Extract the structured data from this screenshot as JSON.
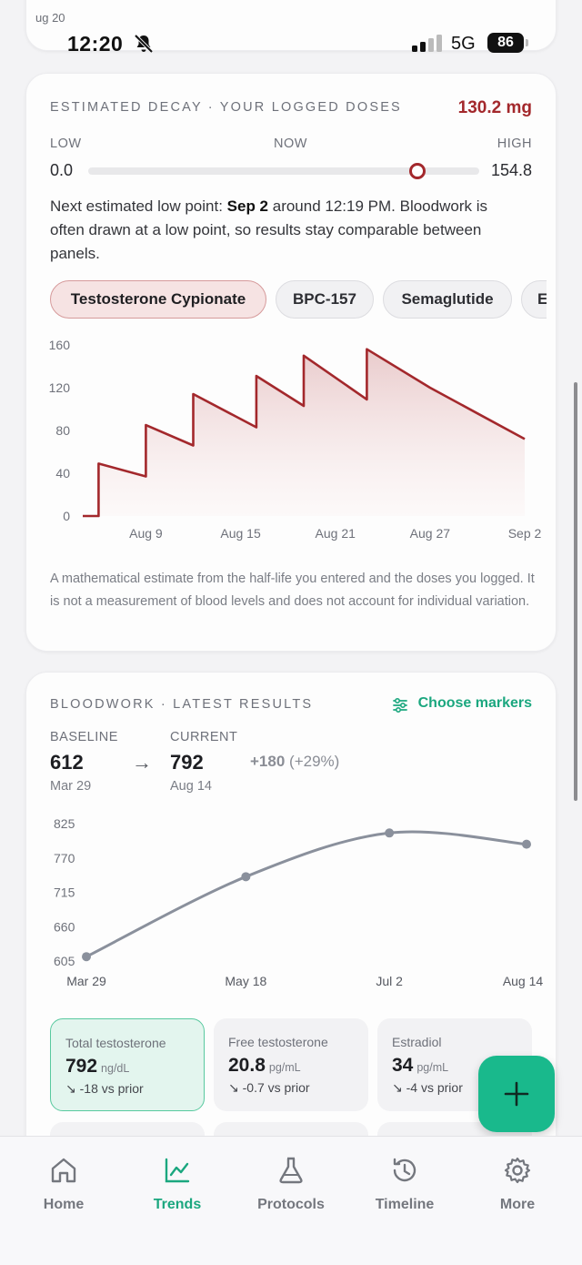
{
  "status_bar": {
    "card_label": "ug 20",
    "time": "12:20",
    "network": "5G",
    "battery": "86"
  },
  "decay": {
    "title": "ESTIMATED DECAY · YOUR LOGGED DOSES",
    "current_value": "130.2 mg",
    "low_label": "LOW",
    "now_label": "NOW",
    "high_label": "HIGH",
    "low_value": "0.0",
    "high_value": "154.8",
    "slider_fraction": 0.841,
    "note_prefix": "Next estimated low point: ",
    "note_date": "Sep 2",
    "note_suffix": " around 12:19 PM. Bloodwork is often drawn at a low point, so results stay comparable between panels.",
    "chips": [
      "Testosterone Cypionate",
      "BPC-157",
      "Semaglutide",
      "E"
    ],
    "disclaimer": "A mathematical estimate from the half-life you entered and the doses you logged. It is not a measurement of blood levels and does not account for individual variation."
  },
  "chart_data": [
    {
      "type": "area",
      "title": "",
      "xlabel": "",
      "ylabel": "",
      "x_ticks": [
        "Aug 9",
        "Aug 15",
        "Aug 21",
        "Aug 27",
        "Sep 2"
      ],
      "y_ticks": [
        0,
        40,
        80,
        120,
        160
      ],
      "ylim": [
        0,
        160
      ],
      "color": "#a3282c",
      "points": [
        [
          "Aug 5",
          0
        ],
        [
          "Aug 6",
          0
        ],
        [
          "Aug 6",
          49
        ],
        [
          "Aug 9",
          37
        ],
        [
          "Aug 9",
          85
        ],
        [
          "Aug 12",
          66
        ],
        [
          "Aug 12",
          114
        ],
        [
          "Aug 16",
          83
        ],
        [
          "Aug 16",
          131
        ],
        [
          "Aug 19",
          103
        ],
        [
          "Aug 19",
          150
        ],
        [
          "Aug 23",
          109
        ],
        [
          "Aug 23",
          156
        ],
        [
          "Aug 27",
          120
        ],
        [
          "Aug 30",
          96
        ],
        [
          "Sep 2",
          72
        ]
      ]
    },
    {
      "type": "line",
      "title": "",
      "xlabel": "",
      "ylabel": "",
      "categories": [
        "Mar 29",
        "May 18",
        "Jul 2",
        "Aug 14"
      ],
      "values": [
        612,
        740,
        810,
        792
      ],
      "y_ticks": [
        605,
        660,
        715,
        770,
        825
      ],
      "ylim": [
        605,
        825
      ],
      "color": "#8a909c"
    }
  ],
  "bloodwork": {
    "title": "BLOODWORK · LATEST RESULTS",
    "choose_label": "Choose markers",
    "baseline_label": "BASELINE",
    "baseline_value": "612",
    "baseline_date": "Mar 29",
    "current_label": "CURRENT",
    "current_value": "792",
    "current_date": "Aug 14",
    "arrow": "→",
    "delta": "+180",
    "delta_pct": "(+29%)",
    "tiles": [
      {
        "name": "Total testosterone",
        "value": "792",
        "unit": "ng/dL",
        "change": "↘ -18 vs prior"
      },
      {
        "name": "Free testosterone",
        "value": "20.8",
        "unit": "pg/mL",
        "change": "↘ -0.7 vs prior"
      },
      {
        "name": "Estradiol",
        "value": "34",
        "unit": "pg/mL",
        "change": "↘ -4 vs prior"
      }
    ]
  },
  "tabs": [
    {
      "label": "Home",
      "icon": "home-icon"
    },
    {
      "label": "Trends",
      "icon": "trends-icon"
    },
    {
      "label": "Protocols",
      "icon": "flask-icon"
    },
    {
      "label": "Timeline",
      "icon": "history-icon"
    },
    {
      "label": "More",
      "icon": "gear-icon"
    }
  ],
  "colors": {
    "accent": "#1ba77f",
    "decay": "#a3282c",
    "fab": "#19b98c"
  }
}
